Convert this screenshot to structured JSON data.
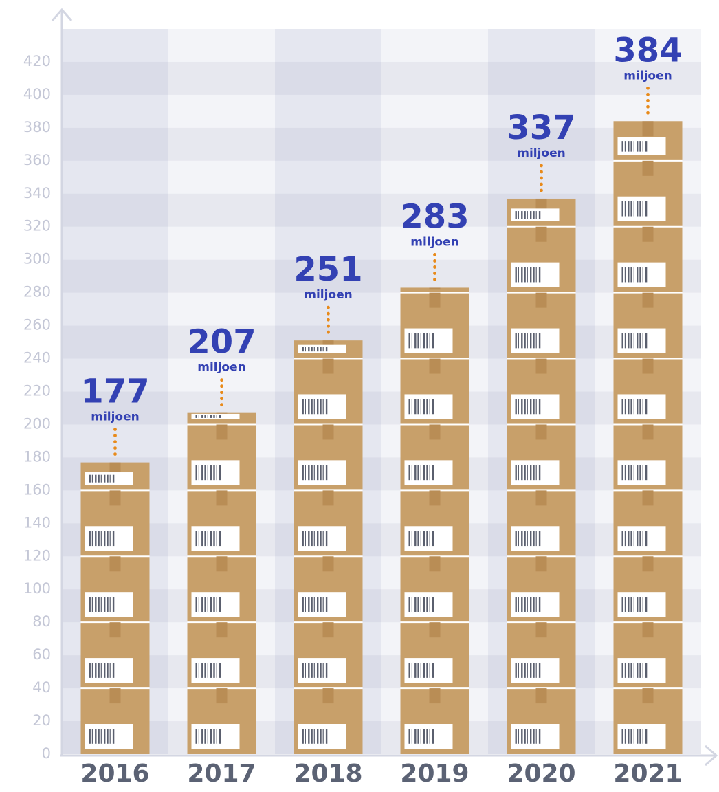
{
  "chart_data": {
    "type": "bar",
    "categories": [
      "2016",
      "2017",
      "2018",
      "2019",
      "2020",
      "2021"
    ],
    "values": [
      177,
      207,
      251,
      283,
      337,
      384
    ],
    "unit": "miljoen",
    "color": "#c8a06a",
    "ylim": [
      0,
      440
    ],
    "yticks": [
      0,
      20,
      40,
      60,
      80,
      100,
      120,
      140,
      160,
      180,
      200,
      220,
      240,
      260,
      280,
      300,
      320,
      340,
      360,
      380,
      400,
      420
    ],
    "grid": true
  }
}
